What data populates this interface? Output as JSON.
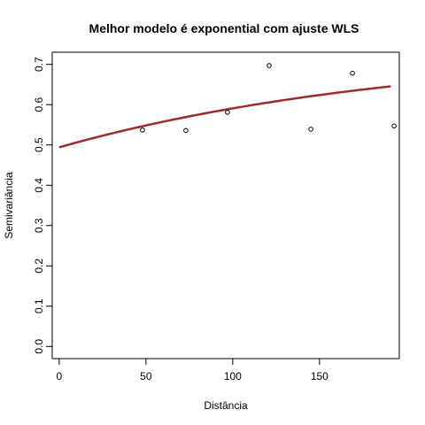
{
  "chart_data": {
    "type": "scatter",
    "title": "Melhor modelo é exponential com ajuste  WLS",
    "xlabel": "Distância",
    "ylabel": "Semivariância",
    "xlim": [
      -4,
      196
    ],
    "ylim": [
      -0.03,
      0.73
    ],
    "xticks": [
      0,
      50,
      100,
      150
    ],
    "yticks": [
      0.0,
      0.1,
      0.2,
      0.3,
      0.4,
      0.5,
      0.6,
      0.7
    ],
    "ytick_labels": [
      "0.0",
      "0.1",
      "0.2",
      "0.3",
      "0.4",
      "0.5",
      "0.6",
      "0.7"
    ],
    "points": {
      "x": [
        48,
        73,
        97,
        121,
        145,
        169,
        193
      ],
      "y": [
        0.537,
        0.536,
        0.581,
        0.697,
        0.539,
        0.678,
        0.547
      ]
    },
    "fitted_model": {
      "model": "exponential",
      "nugget": 0.494,
      "partial_sill": 0.246,
      "range": 200,
      "x_max": 191,
      "color": "#9b2d30"
    },
    "grid": false,
    "legend": "none"
  }
}
